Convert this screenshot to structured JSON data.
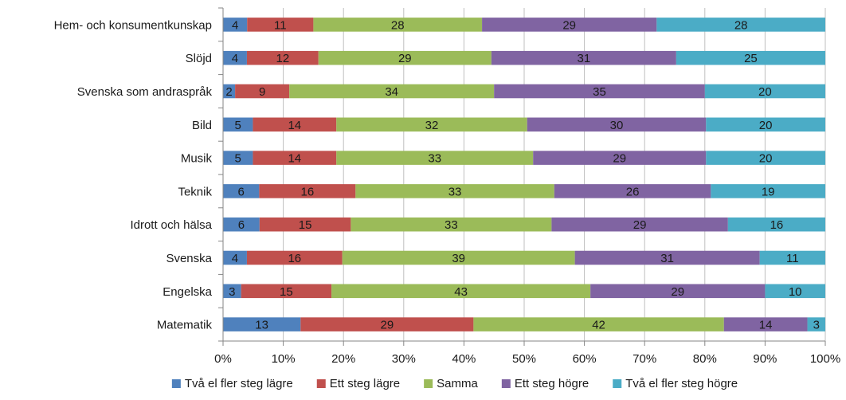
{
  "chart_data": {
    "type": "bar",
    "orientation": "horizontal",
    "stacked": "percent",
    "categories": [
      "Hem- och konsumentkunskap",
      "Slöjd",
      "Svenska som andraspråk",
      "Bild",
      "Musik",
      "Teknik",
      "Idrott och hälsa",
      "Svenska",
      "Engelska",
      "Matematik"
    ],
    "series": [
      {
        "name": "Två el fler steg lägre",
        "color": "#4f81bd",
        "values": [
          4,
          4,
          2,
          5,
          5,
          6,
          6,
          4,
          3,
          13
        ]
      },
      {
        "name": "Ett steg lägre",
        "color": "#c0504d",
        "values": [
          11,
          12,
          9,
          14,
          14,
          16,
          15,
          16,
          15,
          29
        ]
      },
      {
        "name": "Samma",
        "color": "#9bbb59",
        "values": [
          28,
          29,
          34,
          32,
          33,
          33,
          33,
          39,
          43,
          42
        ]
      },
      {
        "name": "Ett steg högre",
        "color": "#8064a2",
        "values": [
          29,
          31,
          35,
          30,
          29,
          26,
          29,
          31,
          29,
          14
        ]
      },
      {
        "name": "Två el fler steg högre",
        "color": "#4bacc6",
        "values": [
          28,
          25,
          20,
          20,
          20,
          19,
          16,
          11,
          10,
          3
        ]
      }
    ],
    "xlim": [
      0,
      100
    ],
    "x_ticks": [
      "0%",
      "10%",
      "20%",
      "30%",
      "40%",
      "50%",
      "60%",
      "70%",
      "80%",
      "90%",
      "100%"
    ],
    "grid": true,
    "legend_position": "bottom",
    "title": "",
    "xlabel": "",
    "ylabel": ""
  }
}
